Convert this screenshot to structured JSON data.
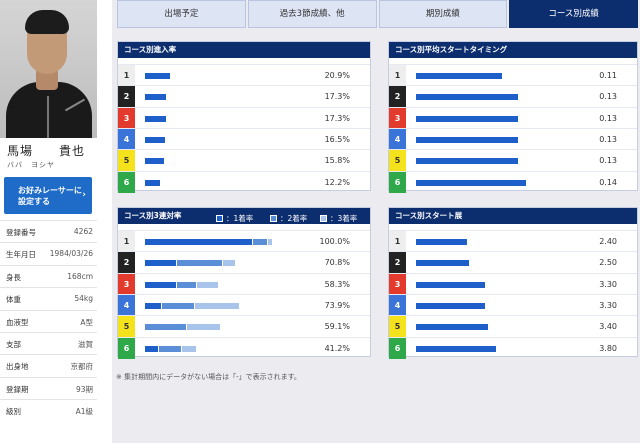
{
  "racer": {
    "name": "馬場　　貴也",
    "kana": "ババ　ヨシヤ",
    "favorite_button": "お好みレーサーに\n設定する",
    "info": [
      {
        "key": "登録番号",
        "value": "4262"
      },
      {
        "key": "生年月日",
        "value": "1984/03/26"
      },
      {
        "key": "身長",
        "value": "168cm"
      },
      {
        "key": "体重",
        "value": "54kg"
      },
      {
        "key": "血液型",
        "value": "A型"
      },
      {
        "key": "支部",
        "value": "滋賀"
      },
      {
        "key": "出身地",
        "value": "京都府"
      },
      {
        "key": "登録期",
        "value": "93期"
      },
      {
        "key": "級別",
        "value": "A1級"
      }
    ]
  },
  "tabs": [
    {
      "label": "出場予定",
      "active": false
    },
    {
      "label": "過去3節成績、他",
      "active": false
    },
    {
      "label": "期別成績",
      "active": false
    },
    {
      "label": "コース別成績",
      "active": true
    }
  ],
  "lanes": [
    {
      "num": "1",
      "bg": "#eeeeee",
      "fg": "#333333"
    },
    {
      "num": "2",
      "bg": "#222222",
      "fg": "#ffffff"
    },
    {
      "num": "3",
      "bg": "#e23b2e",
      "fg": "#ffffff"
    },
    {
      "num": "4",
      "bg": "#3a74d8",
      "fg": "#ffffff"
    },
    {
      "num": "5",
      "bg": "#f4e21d",
      "fg": "#333333"
    },
    {
      "num": "6",
      "bg": "#2fa84a",
      "fg": "#ffffff"
    }
  ],
  "panels": {
    "entry_rate": {
      "title": "コース別進入率",
      "values": [
        "20.9%",
        "17.3%",
        "17.3%",
        "16.5%",
        "15.8%",
        "12.2%"
      ],
      "fractions": [
        0.209,
        0.173,
        0.173,
        0.165,
        0.158,
        0.122
      ]
    },
    "start_timing": {
      "title": "コース別平均スタートタイミング",
      "values": [
        "0.11",
        "0.13",
        "0.13",
        "0.13",
        "0.13",
        "0.14"
      ],
      "numbers": [
        0.11,
        0.13,
        0.13,
        0.13,
        0.13,
        0.14
      ]
    },
    "top3_rate": {
      "title": "コース別3連対率",
      "legend": [
        "：1着率",
        "：2着率",
        "：3着率"
      ],
      "values": [
        "100.0%",
        "70.8%",
        "58.3%",
        "73.9%",
        "59.1%",
        "41.2%"
      ],
      "segments": [
        [
          0.84,
          0.12,
          0.04
        ],
        [
          0.25,
          0.36,
          0.1
        ],
        [
          0.25,
          0.16,
          0.17
        ],
        [
          0.13,
          0.26,
          0.35
        ],
        [
          0.0,
          0.33,
          0.26
        ],
        [
          0.11,
          0.18,
          0.12
        ]
      ]
    },
    "start_position": {
      "title": "コース別スタート展",
      "values": [
        "2.40",
        "2.50",
        "3.30",
        "3.30",
        "3.40",
        "3.80"
      ],
      "numbers": [
        2.4,
        2.5,
        3.3,
        3.3,
        3.4,
        3.8
      ]
    }
  },
  "footnote": "※ 集計期間内にデータがない場合は「-」で表示されます。",
  "colors": {
    "navy": "#0d2e6e",
    "bar1": "#1e5fc9",
    "bar2": "#5a8fd8",
    "bar3": "#a9c4ea",
    "button": "#1e6bc8"
  }
}
